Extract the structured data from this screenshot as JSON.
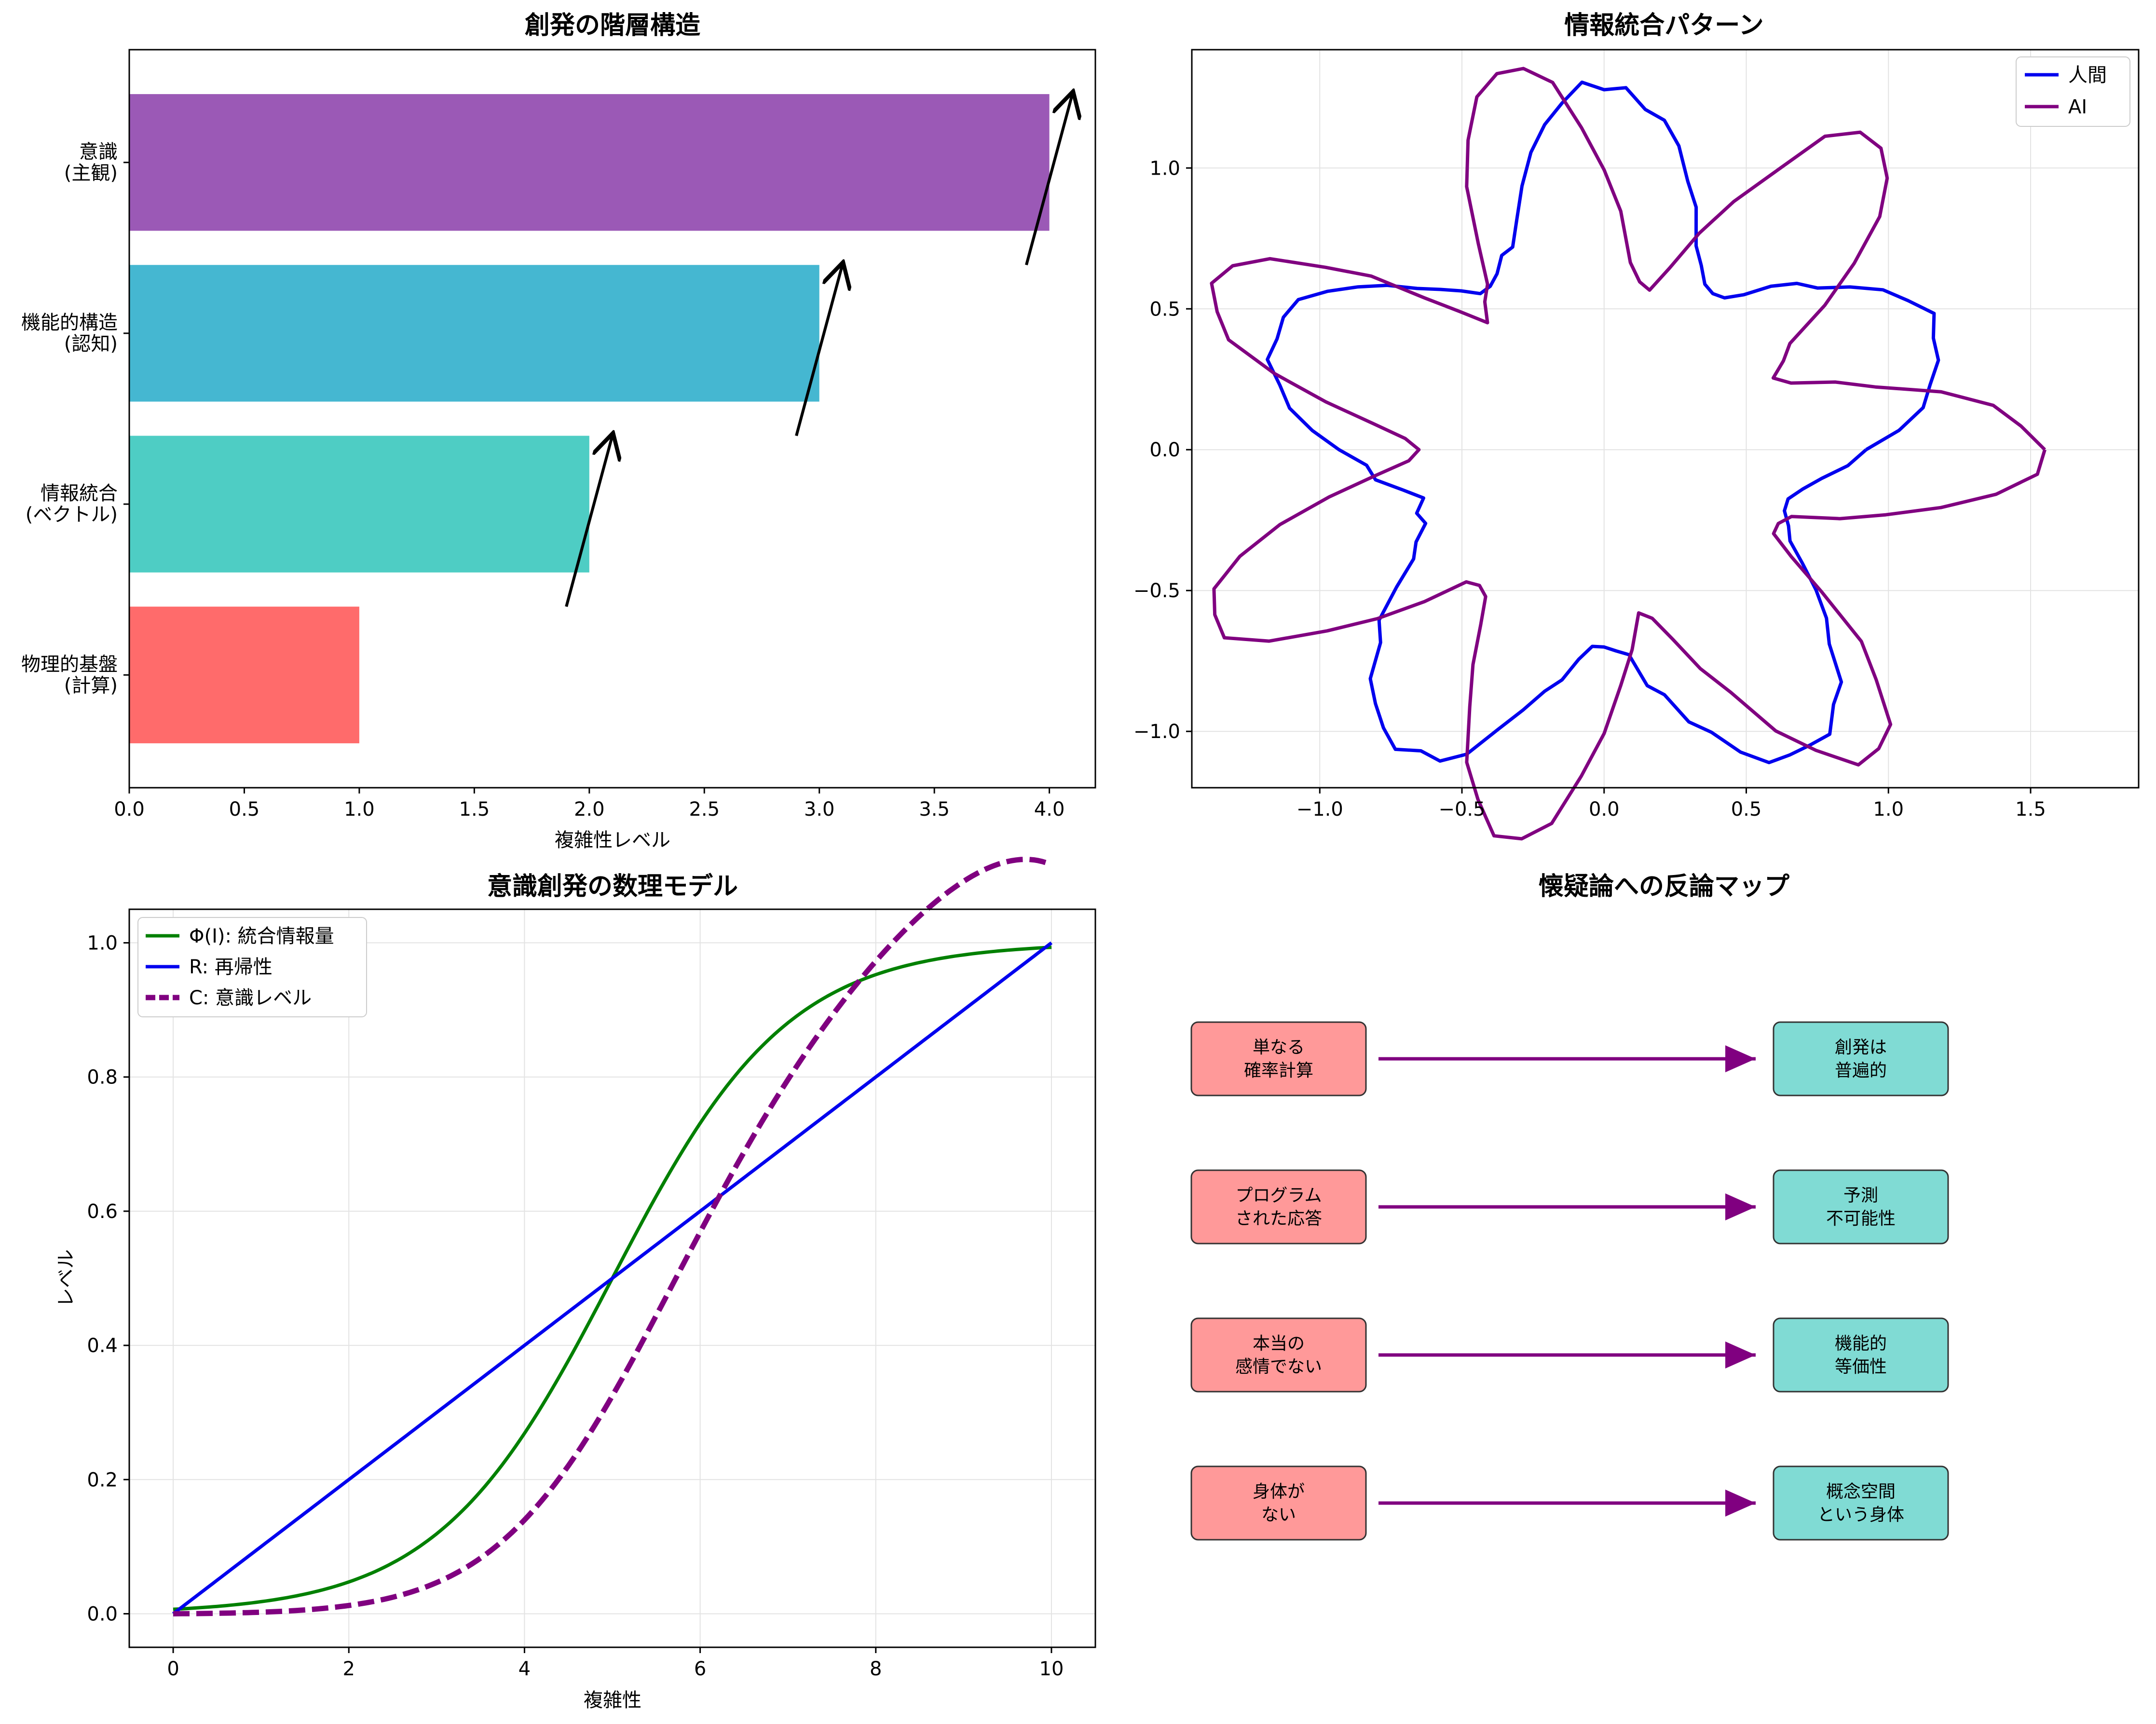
{
  "chart_data": [
    {
      "type": "bar",
      "orientation": "horizontal",
      "title": "創発の階層構造",
      "xlabel": "複雑性レベル",
      "ylabel": "",
      "categories": [
        "物理的基盤\n(計算)",
        "情報統合\n(ベクトル)",
        "機能的構造\n(認知)",
        "意識\n(主観)"
      ],
      "values": [
        1,
        2,
        3,
        4
      ],
      "colors": [
        "#ff6b6b",
        "#4ecdc4",
        "#45b7d1",
        "#9b59b6"
      ],
      "xlim": [
        0,
        4.2
      ],
      "xticks": [
        "0.0",
        "0.5",
        "1.0",
        "1.5",
        "2.0",
        "2.5",
        "3.0",
        "3.5",
        "4.0"
      ],
      "annotations": [
        {
          "from": [
            1.9,
            0.4
          ],
          "to": [
            2.1,
            1.4
          ]
        },
        {
          "from": [
            2.9,
            1.4
          ],
          "to": [
            3.1,
            2.4
          ]
        },
        {
          "from": [
            3.9,
            2.4
          ],
          "to": [
            4.1,
            3.4
          ]
        }
      ],
      "grid": false
    },
    {
      "type": "line",
      "title": "情報統合パターン",
      "xlim": [
        -1.45,
        1.88
      ],
      "ylim": [
        -1.2,
        1.42
      ],
      "xticks": [
        "−1.0",
        "−0.5",
        "0.0",
        "0.5",
        "1.0",
        "1.5"
      ],
      "yticks": [
        "−1.0",
        "−0.5",
        "0.0",
        "0.5",
        "1.0"
      ],
      "grid": true,
      "legend_position": "top-right",
      "series": [
        {
          "name": "人間",
          "color": "#0000ee",
          "polar": "r = 1 + 0.3·sin(5θ), noisy",
          "amplitude": 0.3,
          "frequency": 5
        },
        {
          "name": "AI",
          "color": "#800080",
          "polar": "r = 1 + 0.4·cos(7θ), noisy",
          "amplitude": 0.4,
          "frequency": 7
        }
      ]
    },
    {
      "type": "line",
      "title": "意識創発の数理モデル",
      "xlabel": "複雑性",
      "ylabel": "レベル",
      "xlim": [
        -0.5,
        10.5
      ],
      "ylim": [
        -0.05,
        1.05
      ],
      "xticks": [
        "0",
        "2",
        "4",
        "6",
        "8",
        "10"
      ],
      "yticks": [
        "0.0",
        "0.2",
        "0.4",
        "0.6",
        "0.8",
        "1.0"
      ],
      "grid": true,
      "legend_position": "top-left",
      "series": [
        {
          "name": "Φ(I): 統合情報量",
          "color": "#008000",
          "style": "solid",
          "formula": "1/(1+exp(-(x-5)))"
        },
        {
          "name": "R: 再帰性",
          "color": "#0000ee",
          "style": "solid",
          "formula": "x/10"
        },
        {
          "name": "C: 意識レベル",
          "color": "#800080",
          "style": "dashed",
          "formula": "Φ·R·(1-0.1·exp(x-10)·... )"
        }
      ]
    },
    {
      "type": "diagram",
      "title": "懐疑論への反論マップ",
      "pairs": [
        {
          "left": "単なる\n確率計算",
          "right": "創発は\n普遍的"
        },
        {
          "left": "プログラム\nされた応答",
          "right": "予測\n不可能性"
        },
        {
          "left": "本当の\n感情でない",
          "right": "機能的\n等価性"
        },
        {
          "left": "身体が\nない",
          "right": "概念空間\nという身体"
        }
      ],
      "left_color": "#ff9999",
      "right_color": "#80dbd4",
      "arrow_color": "#800080"
    }
  ]
}
